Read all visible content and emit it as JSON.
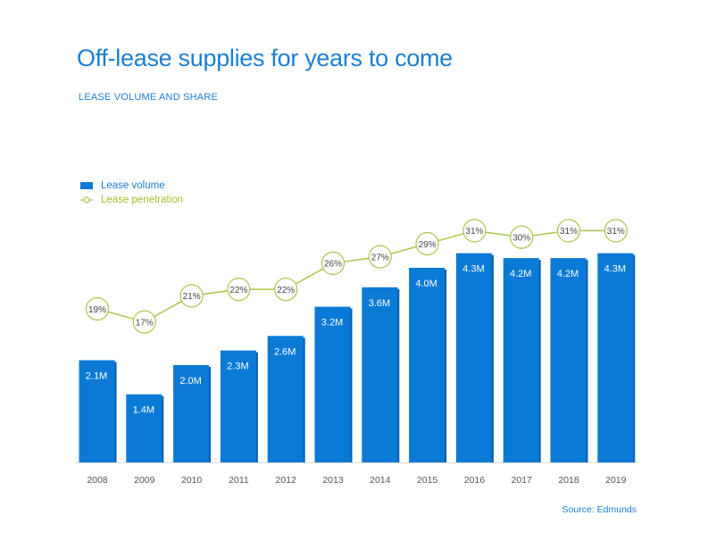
{
  "title": "Off-lease supplies for years to come",
  "subtitle": "LEASE VOLUME AND SHARE",
  "legend": {
    "volume_label": "Lease volume",
    "penetration_label": "Lease penetration"
  },
  "source": "Source: Edmunds",
  "colors": {
    "bar": "#0b7ad6",
    "bar_shadow": "#0a5fae",
    "line": "#a6c84a",
    "title": "#1a7fd4"
  },
  "chart_data": {
    "type": "bar",
    "categories": [
      "2008",
      "2009",
      "2010",
      "2011",
      "2012",
      "2013",
      "2014",
      "2015",
      "2016",
      "2017",
      "2018",
      "2019"
    ],
    "series": [
      {
        "name": "Lease volume",
        "type": "bar",
        "values": [
          2.1,
          1.4,
          2.0,
          2.3,
          2.6,
          3.2,
          3.6,
          4.0,
          4.3,
          4.2,
          4.2,
          4.3
        ],
        "labels": [
          "2.1M",
          "1.4M",
          "2.0M",
          "2.3M",
          "2.6M",
          "3.2M",
          "3.6M",
          "4.0M",
          "4.3M",
          "4.2M",
          "4.2M",
          "4.3M"
        ]
      },
      {
        "name": "Lease penetration",
        "type": "line",
        "values": [
          19,
          17,
          21,
          22,
          22,
          26,
          27,
          29,
          31,
          30,
          31,
          31
        ],
        "labels": [
          "19%",
          "17%",
          "21%",
          "22%",
          "22%",
          "26%",
          "27%",
          "29%",
          "31%",
          "30%",
          "31%",
          "31%"
        ]
      }
    ],
    "legend_position": "top-left",
    "grid": false
  }
}
